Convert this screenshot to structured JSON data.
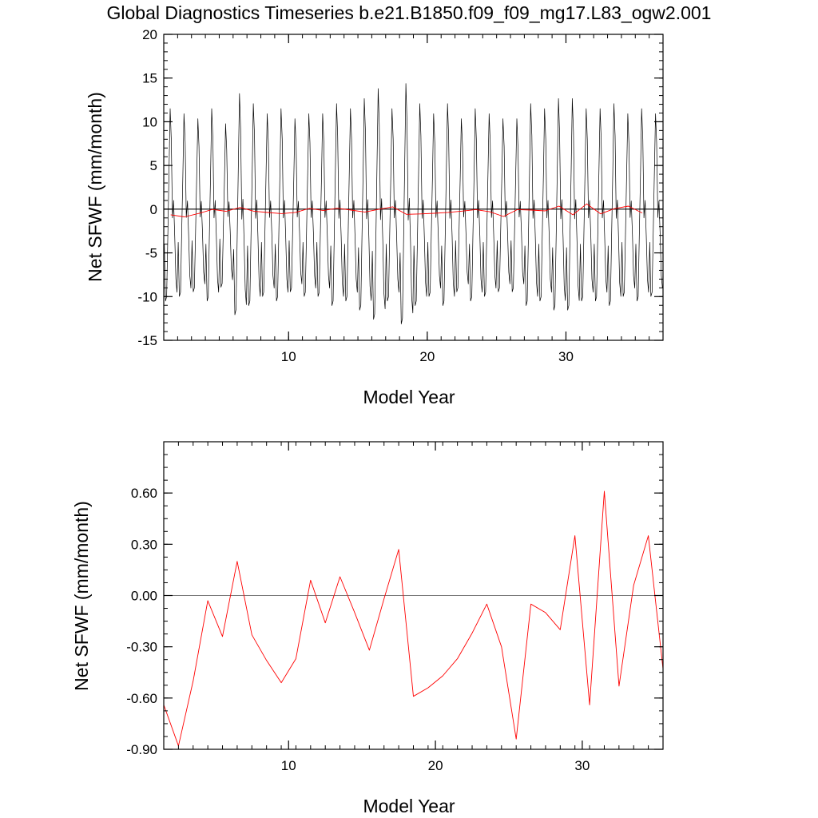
{
  "page": {
    "title": "Global Diagnostics Timeseries b.e21.B1850.f09_f09_mg17.L83_ogw2.001"
  },
  "chart_data": [
    {
      "type": "line",
      "xlabel": "Model Year",
      "ylabel": "Net SFWF (mm/month)",
      "xlim": [
        1,
        37
      ],
      "ylim": [
        -15,
        20
      ],
      "x_ticks": [
        "10",
        "20",
        "30"
      ],
      "x_tick_values": [
        10,
        20,
        30
      ],
      "y_ticks": [
        "20",
        "15",
        "10",
        "5",
        "0",
        "-5",
        "-10",
        "-15"
      ],
      "y_tick_values": [
        20,
        15,
        10,
        5,
        0,
        -5,
        -10,
        -15
      ],
      "zero_line": true,
      "series": [
        {
          "color": "#000000",
          "resolution": "monthly",
          "monthly_pattern": [
            -4,
            -10.5,
            -10,
            -3,
            4,
            11.5,
            8,
            -1,
            1,
            -3,
            -8,
            -9.5
          ],
          "amplitude_scale": [
            1.0,
            0.95,
            0.9,
            1.0,
            0.85,
            1.15,
            1.05,
            0.95,
            1.0,
            0.9,
            0.95,
            0.95,
            1.05,
            1.0,
            1.1,
            1.2,
            1.0,
            1.25,
            1.05,
            0.95,
            1.05,
            0.9,
            1.0,
            0.95,
            0.9,
            0.9,
            1.05,
            1.0,
            1.1,
            1.1,
            1.0,
            1.0,
            1.05,
            0.95,
            1.0,
            0.95
          ]
        },
        {
          "color": "#ff0000",
          "resolution": "annual",
          "x": [
            1.5,
            2.5,
            3.5,
            4.5,
            5.5,
            6.5,
            7.5,
            8.5,
            9.5,
            10.5,
            11.5,
            12.5,
            13.5,
            14.5,
            15.5,
            16.5,
            17.5,
            18.5,
            19.5,
            20.5,
            21.5,
            22.5,
            23.5,
            24.5,
            25.5,
            26.5,
            27.5,
            28.5,
            29.5,
            30.5,
            31.5,
            32.5,
            33.5,
            34.5,
            35.5
          ],
          "values": [
            -0.64,
            -0.88,
            -0.5,
            -0.03,
            -0.24,
            0.2,
            -0.23,
            -0.38,
            -0.51,
            -0.37,
            0.09,
            -0.16,
            0.11,
            -0.1,
            -0.32,
            -0.02,
            0.27,
            -0.59,
            -0.54,
            -0.47,
            -0.37,
            -0.22,
            -0.05,
            -0.3,
            -0.84,
            -0.05,
            -0.1,
            -0.2,
            0.35,
            -0.64,
            0.61,
            -0.53,
            0.06,
            0.35,
            -0.43
          ]
        }
      ]
    },
    {
      "type": "line",
      "xlabel": "Model Year",
      "ylabel": "Net SFWF (mm/month)",
      "xlim": [
        1.5,
        35.5
      ],
      "ylim": [
        -0.9,
        0.9
      ],
      "x_ticks": [
        "10",
        "20",
        "30"
      ],
      "x_tick_values": [
        10,
        20,
        30
      ],
      "y_ticks": [
        "0.60",
        "0.30",
        "0.00",
        "-0.30",
        "-0.60",
        "-0.90"
      ],
      "y_tick_values": [
        0.6,
        0.3,
        0.0,
        -0.3,
        -0.6,
        -0.9
      ],
      "zero_line": true,
      "series": [
        {
          "color": "#ff0000",
          "x": [
            1.5,
            2.5,
            3.5,
            4.5,
            5.5,
            6.5,
            7.5,
            8.5,
            9.5,
            10.5,
            11.5,
            12.5,
            13.5,
            14.5,
            15.5,
            16.5,
            17.5,
            18.5,
            19.5,
            20.5,
            21.5,
            22.5,
            23.5,
            24.5,
            25.5,
            26.5,
            27.5,
            28.5,
            29.5,
            30.5,
            31.5,
            32.5,
            33.5,
            34.5,
            35.5
          ],
          "values": [
            -0.64,
            -0.88,
            -0.5,
            -0.03,
            -0.24,
            0.2,
            -0.23,
            -0.38,
            -0.51,
            -0.37,
            0.09,
            -0.16,
            0.11,
            -0.1,
            -0.32,
            -0.02,
            0.27,
            -0.59,
            -0.54,
            -0.47,
            -0.37,
            -0.22,
            -0.05,
            -0.3,
            -0.84,
            -0.05,
            -0.1,
            -0.2,
            0.35,
            -0.64,
            0.61,
            -0.53,
            0.06,
            0.35,
            -0.43
          ]
        }
      ]
    }
  ]
}
